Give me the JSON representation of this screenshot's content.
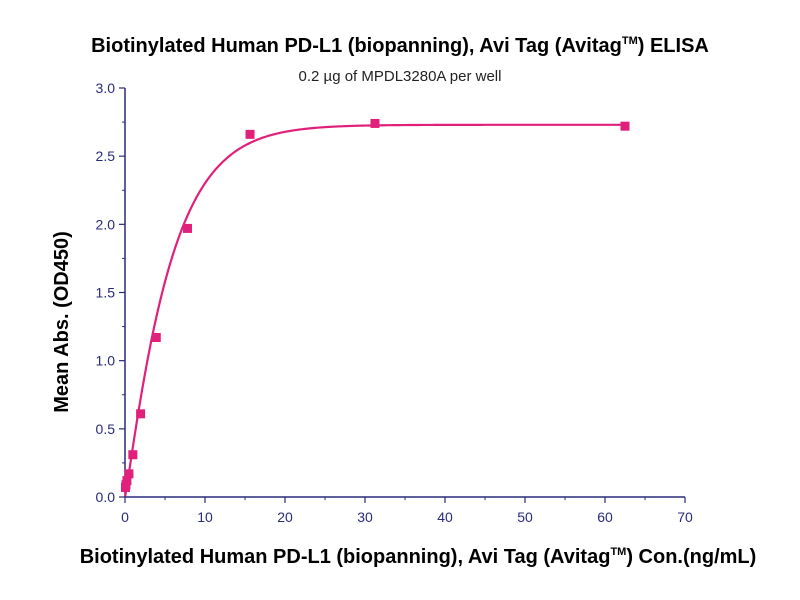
{
  "chart_data": {
    "type": "scatter",
    "title": "Biotinylated Human PD-L1 (biopanning), Avi Tag (Avitag",
    "title_sup": "TM",
    "title_end": ") ELISA",
    "subtitle": "0.2 µg of MPDL3280A per well",
    "xlabel": "Biotinylated Human PD-L1 (biopanning), Avi Tag (Avitag",
    "xlabel_sup": "TM",
    "xlabel_end": ") Con.(ng/mL)",
    "ylabel": "Mean Abs. (OD450)",
    "xlim": [
      0,
      70
    ],
    "ylim": [
      0,
      3.0
    ],
    "x_ticks": [
      "0",
      "10",
      "20",
      "30",
      "40",
      "50",
      "60",
      "70"
    ],
    "y_ticks": [
      "0.0",
      "0.5",
      "1.0",
      "1.5",
      "2.0",
      "2.5",
      "3.0"
    ],
    "grid": false,
    "colors": {
      "series": "#e0207a",
      "axis": "#2a2a7a"
    },
    "series": [
      {
        "points": [
          {
            "x": 0.06,
            "y": 0.07
          },
          {
            "x": 0.12,
            "y": 0.09
          },
          {
            "x": 0.24,
            "y": 0.12
          },
          {
            "x": 0.49,
            "y": 0.17
          },
          {
            "x": 0.98,
            "y": 0.31
          },
          {
            "x": 1.95,
            "y": 0.61
          },
          {
            "x": 3.91,
            "y": 1.17
          },
          {
            "x": 7.81,
            "y": 1.97
          },
          {
            "x": 15.63,
            "y": 2.66
          },
          {
            "x": 31.25,
            "y": 2.74
          },
          {
            "x": 62.5,
            "y": 2.72
          }
        ],
        "fit": {
          "model": "saturation",
          "ymax": 2.73,
          "k": 0.175,
          "n": 1.1
        }
      }
    ]
  }
}
